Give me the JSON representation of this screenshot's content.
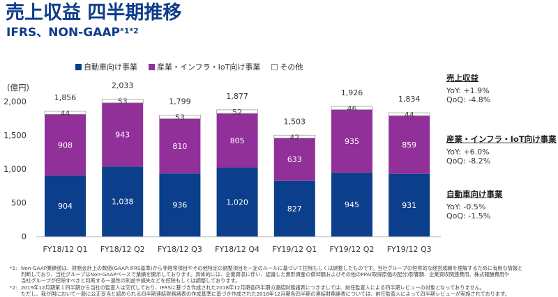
{
  "header": {
    "title": "売上収益 四半期推移",
    "subtitle": "IFRS、NON-GAAP",
    "subtitle_sup": "*1*2"
  },
  "legend": [
    {
      "label": "自動車向け事業",
      "color": "#0b3f8c"
    },
    {
      "label": "産業・インフラ・IoT向け事業",
      "color": "#92309a"
    },
    {
      "label": "その他",
      "color": "#ffffff"
    }
  ],
  "unit_label": "(億円)",
  "chart_data": {
    "type": "bar",
    "stacked": true,
    "title": "売上収益 四半期推移",
    "ylabel": "(億円)",
    "xlabel": "",
    "ylim": [
      0,
      2000
    ],
    "yticks": [
      0,
      500,
      1000,
      1500,
      2000
    ],
    "ytick_labels": [
      "0",
      "500",
      "1,000",
      "1,500",
      "2,000"
    ],
    "categories": [
      "FY18/12 Q1",
      "FY18/12 Q2",
      "FY18/12 Q3",
      "FY18/12 Q4",
      "FY19/12 Q1",
      "FY19/12 Q2",
      "FY19/12 Q3"
    ],
    "series": [
      {
        "name": "自動車向け事業",
        "color": "#0b3f8c",
        "values": [
          904,
          1038,
          936,
          1020,
          827,
          945,
          931
        ],
        "labels": [
          "904",
          "1,038",
          "936",
          "1,020",
          "827",
          "945",
          "931"
        ]
      },
      {
        "name": "産業・インフラ・IoT向け事業",
        "color": "#92309a",
        "values": [
          908,
          943,
          810,
          805,
          633,
          935,
          859
        ],
        "labels": [
          "908",
          "943",
          "810",
          "805",
          "633",
          "935",
          "859"
        ]
      },
      {
        "name": "その他",
        "color": "#ffffff",
        "values": [
          44,
          53,
          53,
          52,
          42,
          46,
          44
        ],
        "labels": [
          "44",
          "53",
          "53",
          "52",
          "42",
          "46",
          "44"
        ]
      }
    ],
    "totals": [
      1856,
      2033,
      1799,
      1877,
      1503,
      1926,
      1834
    ],
    "total_labels": [
      "1,856",
      "2,033",
      "1,799",
      "1,877",
      "1,503",
      "1,926",
      "1,834"
    ],
    "grid": false,
    "legend_position": "top"
  },
  "side_notes": [
    {
      "heading": "売上収益",
      "yoy": "YoY: +1.9%",
      "qoq": "QoQ: -4.8%"
    },
    {
      "heading": "産業・インフラ・IoT向け事業",
      "yoy": "YoY: +6.0%",
      "qoq": "QoQ: -8.2%"
    },
    {
      "heading": "自動車向け事業",
      "yoy": "YoY: -0.5%",
      "qoq": "QoQ: -1.5%"
    }
  ],
  "footnotes": [
    {
      "mark": "*1:",
      "lines": [
        "Non-GAAP業績値は、財務会計上の数値(GAAP:IFRS基準)から非経常項目やその他特定の調整項目を一定のルールに基づいて控除もしくは調整したものです。当社グループの恒常的な経営成績を理解するために有用な情報と",
        "判断しており、当社グループはNon-GAAPベースで業績を開示しております。具体的には、企業買収に伴い、認識した無形資産の償却額およびその他のPPA(取得原価の配分)影響額、企業買収関連費用、株式報酬費用や",
        "当社グループが控除すべきと判断する一過性の利益や損失などを控除もしくは調整しております。"
      ]
    },
    {
      "mark": "*2:",
      "lines": [
        "2019年12月期第１四半期から当社の監査人は交代しており、IFRSに基づき作成された2018年12月期各四半期の連結財務諸表につきましては、前任監査人による四半期レビューの対象となっておりません。",
        "ただし、我が国において一般に公正妥当と認められる四半期連結財務諸表の作成基準に基づき作成された2018年12月期各四半期の連結財務諸表については、前任監査人によって四半期レビューが実施されております。"
      ]
    }
  ]
}
